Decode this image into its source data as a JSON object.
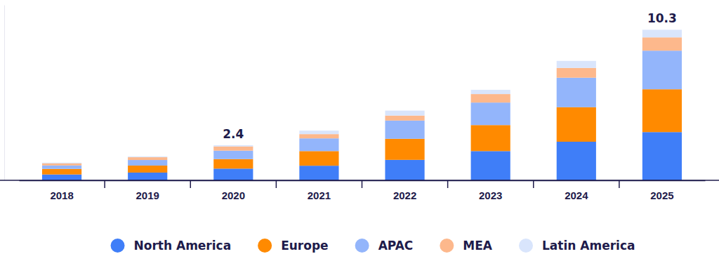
{
  "chart_data": {
    "type": "bar",
    "stacked": true,
    "legend": "bottom",
    "grid": false,
    "tick_labels": "x",
    "categories": [
      "2018",
      "2019",
      "2020",
      "2021",
      "2022",
      "2023",
      "2024",
      "2025"
    ],
    "ylim": [
      0,
      12
    ],
    "yticks": [],
    "series": [
      {
        "name": "North America",
        "color": "#3f7ef8",
        "values": [
          0.4,
          0.53,
          0.8,
          1.0,
          1.4,
          2.0,
          2.64,
          3.3
        ]
      },
      {
        "name": "Europe",
        "color": "#ff8a00",
        "values": [
          0.38,
          0.48,
          0.65,
          1.0,
          1.44,
          1.78,
          2.36,
          2.93
        ]
      },
      {
        "name": "APAC",
        "color": "#93b5fb",
        "values": [
          0.24,
          0.38,
          0.58,
          0.87,
          1.25,
          1.54,
          2.02,
          2.64
        ]
      },
      {
        "name": "MEA",
        "color": "#fdb88c",
        "values": [
          0.14,
          0.19,
          0.29,
          0.29,
          0.34,
          0.58,
          0.67,
          0.91
        ]
      },
      {
        "name": "Latin America",
        "color": "#d9e5fc",
        "values": [
          0.05,
          0.05,
          0.08,
          0.24,
          0.34,
          0.29,
          0.48,
          0.52
        ]
      }
    ],
    "annotations": [
      {
        "x": "2020",
        "y": 2.4,
        "text": "2.4"
      },
      {
        "x": "2025",
        "y": 10.3,
        "text": "10.3"
      }
    ]
  }
}
